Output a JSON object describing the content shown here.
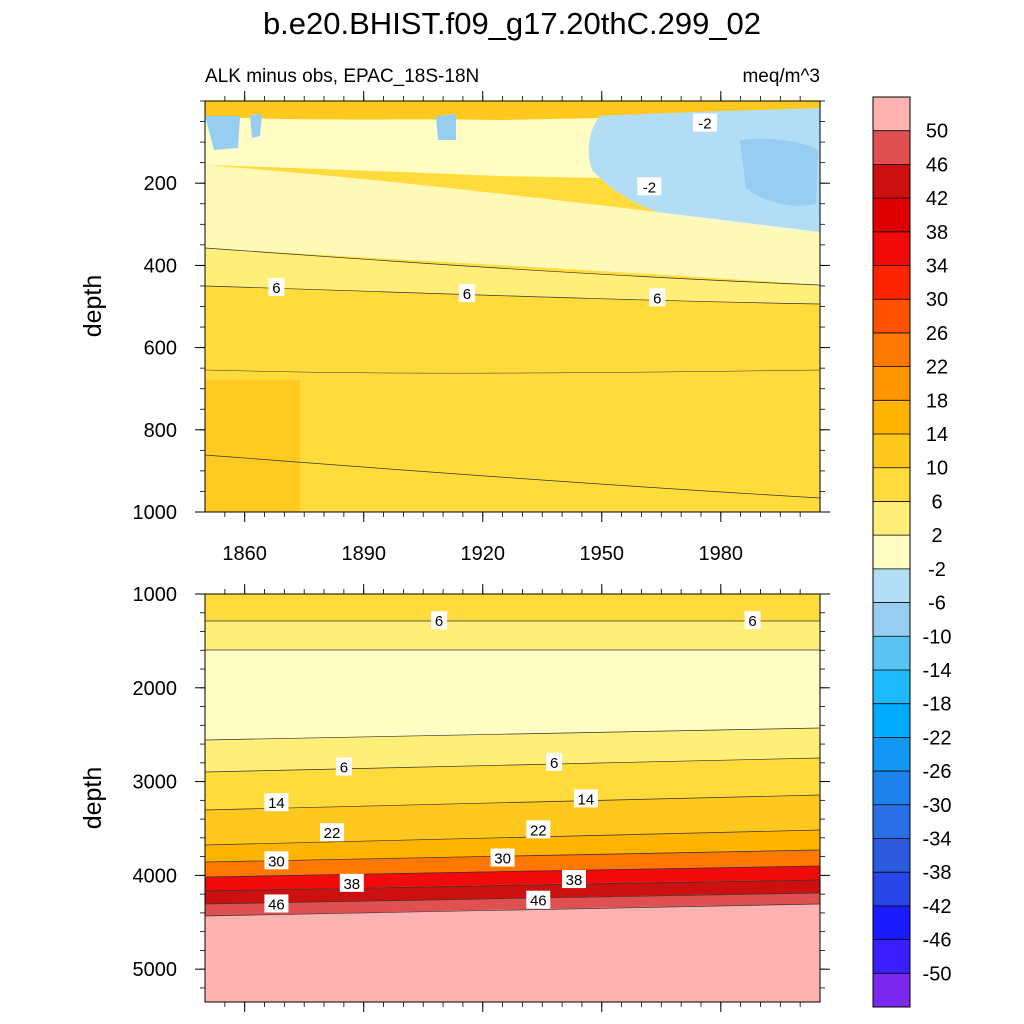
{
  "title": "b.e20.BHIST.f09_g17.20thC.299_02",
  "subtitle_left": "ALK minus obs, EPAC_18S-18N",
  "subtitle_right": "meq/m^3",
  "chart_data": [
    {
      "type": "heatmap",
      "panel": "upper",
      "ylabel": "depth",
      "ylim": [
        1000,
        0
      ],
      "y_ticks": [
        200,
        400,
        600,
        800,
        1000
      ],
      "y_tick_labels": [
        "200",
        "400",
        "600",
        "800",
        "1000"
      ],
      "xlim": [
        1850,
        2005
      ],
      "x_ticks": [
        1860,
        1890,
        1920,
        1950,
        1980
      ],
      "x_tick_labels": [
        "1860",
        "1890",
        "1920",
        "1950",
        "1980"
      ],
      "contour_labels": [
        {
          "text": "-2",
          "x": 1976,
          "y": 55
        },
        {
          "text": "-2",
          "x": 1962,
          "y": 210
        },
        {
          "text": "6",
          "x": 1868,
          "y": 455
        },
        {
          "text": "6",
          "x": 1916,
          "y": 470
        },
        {
          "text": "6",
          "x": 1964,
          "y": 480
        }
      ],
      "depth_bands": [
        {
          "from": 0,
          "to": 60,
          "range": "6 to 14"
        },
        {
          "from": 60,
          "to": 280,
          "range": "-10 to 2"
        },
        {
          "from": 280,
          "to": 470,
          "range": "2 to 6"
        },
        {
          "from": 470,
          "to": 1000,
          "range": "6 to 14"
        }
      ]
    },
    {
      "type": "heatmap",
      "panel": "lower",
      "ylabel": "depth",
      "ylim": [
        5350,
        1000
      ],
      "y_ticks": [
        1000,
        2000,
        3000,
        4000,
        5000
      ],
      "y_tick_labels": [
        "1000",
        "2000",
        "3000",
        "4000",
        "5000"
      ],
      "xlim": [
        1850,
        2005
      ],
      "contour_labels": [
        {
          "text": "6",
          "x": 1909,
          "y": 1290
        },
        {
          "text": "6",
          "x": 1988,
          "y": 1290
        },
        {
          "text": "6",
          "x": 1885,
          "y": 2850
        },
        {
          "text": "6",
          "x": 1938,
          "y": 2800
        },
        {
          "text": "14",
          "x": 1868,
          "y": 3230
        },
        {
          "text": "14",
          "x": 1946,
          "y": 3190
        },
        {
          "text": "22",
          "x": 1882,
          "y": 3550
        },
        {
          "text": "22",
          "x": 1934,
          "y": 3520
        },
        {
          "text": "30",
          "x": 1868,
          "y": 3850
        },
        {
          "text": "30",
          "x": 1925,
          "y": 3820
        },
        {
          "text": "38",
          "x": 1887,
          "y": 4090
        },
        {
          "text": "38",
          "x": 1943,
          "y": 4050
        },
        {
          "text": "46",
          "x": 1868,
          "y": 4310
        },
        {
          "text": "46",
          "x": 1934,
          "y": 4270
        }
      ],
      "depth_bands": [
        {
          "from": 1000,
          "to": 1300,
          "range": "6 to 10"
        },
        {
          "from": 1300,
          "to": 1600,
          "range": "2 to 6"
        },
        {
          "from": 1600,
          "to": 2550,
          "range": "-2 to 2"
        },
        {
          "from": 2550,
          "to": 4300,
          "range": "2 to 50"
        },
        {
          "from": 4300,
          "to": 5350,
          "range": "> 50"
        }
      ]
    },
    {
      "type": "colorbar",
      "levels": [
        "50",
        "46",
        "42",
        "38",
        "34",
        "30",
        "26",
        "22",
        "18",
        "14",
        "10",
        "6",
        "2",
        "-2",
        "-6",
        "-10",
        "-14",
        "-18",
        "-22",
        "-26",
        "-30",
        "-34",
        "-38",
        "-42",
        "-46",
        "-50"
      ],
      "colors": [
        "#ffb2b2",
        "#e05050",
        "#cc1010",
        "#de0000",
        "#f00a0a",
        "#ff2400",
        "#ff5200",
        "#ff7800",
        "#ff9600",
        "#ffb400",
        "#ffc81e",
        "#ffdc3c",
        "#ffee78",
        "#fffcc4",
        "#b3dcf5",
        "#96cdf0",
        "#5ac3f4",
        "#1eb9fa",
        "#00aaff",
        "#1496f5",
        "#1e82ed",
        "#2a6ee6",
        "#2c5adc",
        "#2846e8",
        "#1a1aff",
        "#3a1eff",
        "#7a28ee"
      ]
    }
  ]
}
